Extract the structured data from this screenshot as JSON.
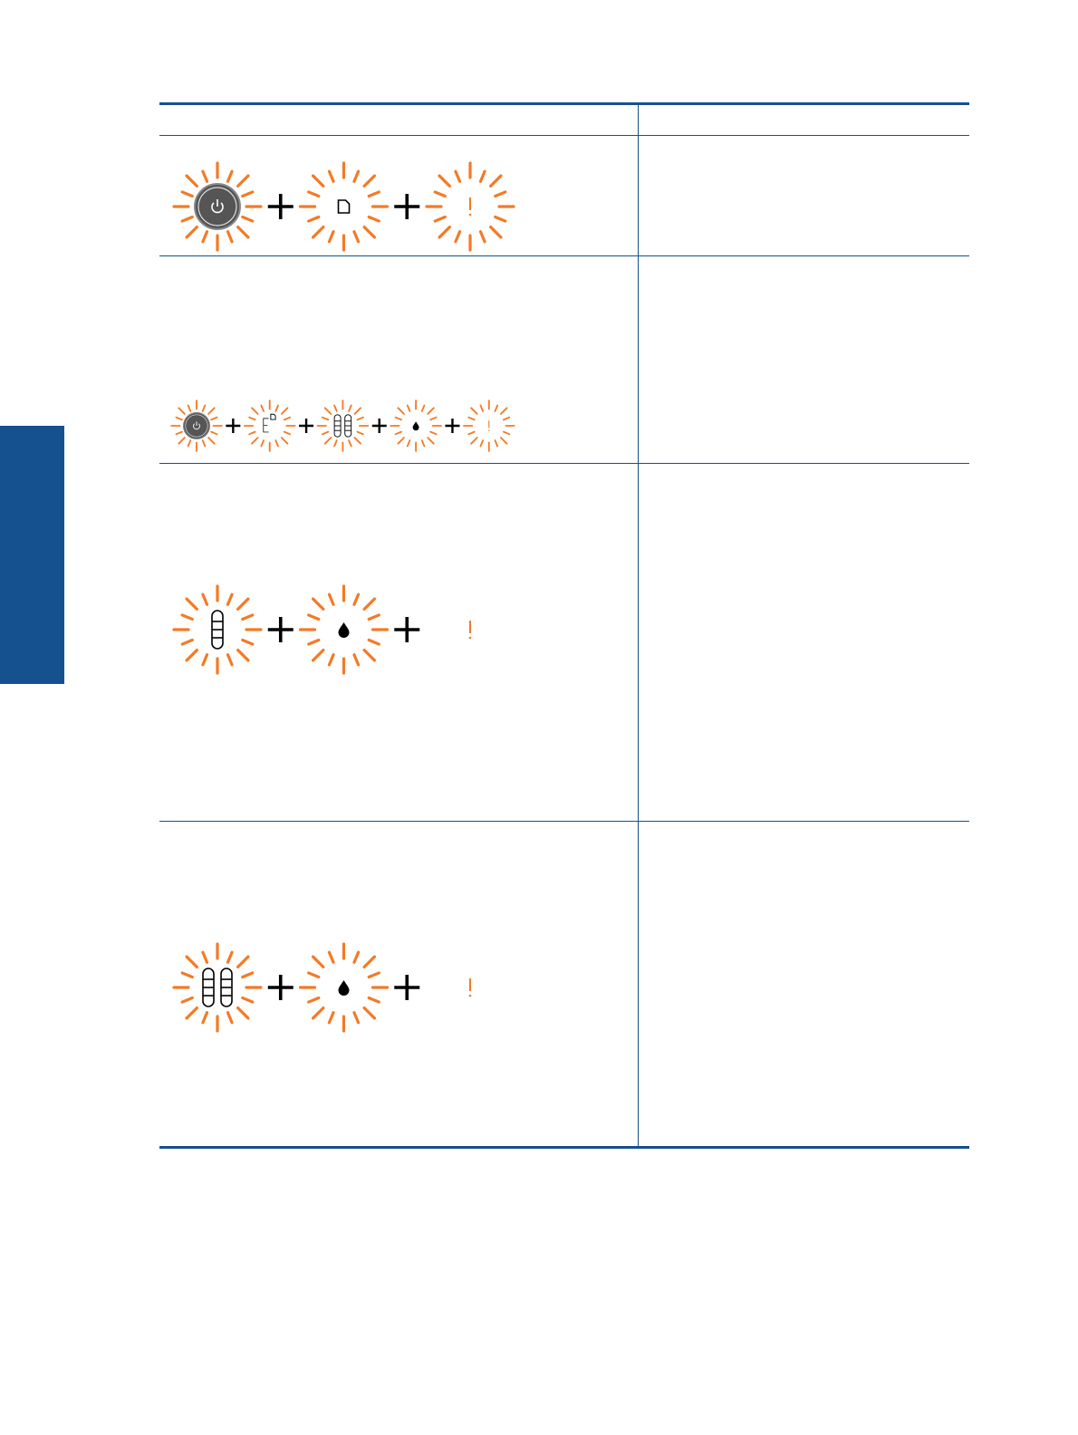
{
  "colors": {
    "accent": "#15508f",
    "light_blink": "#f47a26",
    "power_button": "#555555",
    "plus": "#000000"
  },
  "table": {
    "header": [
      "",
      ""
    ],
    "rows": [
      {
        "lights": [
          {
            "icon": "power-icon",
            "blinking": true
          },
          {
            "icon": "paper-icon",
            "blinking": true
          },
          {
            "icon": "attention-icon",
            "blinking": true
          }
        ],
        "size": "large",
        "description": ""
      },
      {
        "lights": [
          {
            "icon": "power-icon",
            "blinking": true
          },
          {
            "icon": "error-paper-icon",
            "blinking": true
          },
          {
            "icon": "two-cartridges-icon",
            "blinking": true
          },
          {
            "icon": "ink-drop-icon",
            "blinking": true
          },
          {
            "icon": "attention-icon",
            "blinking": true
          }
        ],
        "size": "small",
        "description": ""
      },
      {
        "lights": [
          {
            "icon": "one-cartridge-icon",
            "blinking": true
          },
          {
            "icon": "ink-drop-icon",
            "blinking": true
          },
          {
            "icon": "attention-icon",
            "blinking": false
          }
        ],
        "size": "large",
        "description": ""
      },
      {
        "lights": [
          {
            "icon": "two-cartridges-icon",
            "blinking": true
          },
          {
            "icon": "ink-drop-icon",
            "blinking": true
          },
          {
            "icon": "attention-icon",
            "blinking": false
          }
        ],
        "size": "large",
        "description": ""
      }
    ]
  }
}
